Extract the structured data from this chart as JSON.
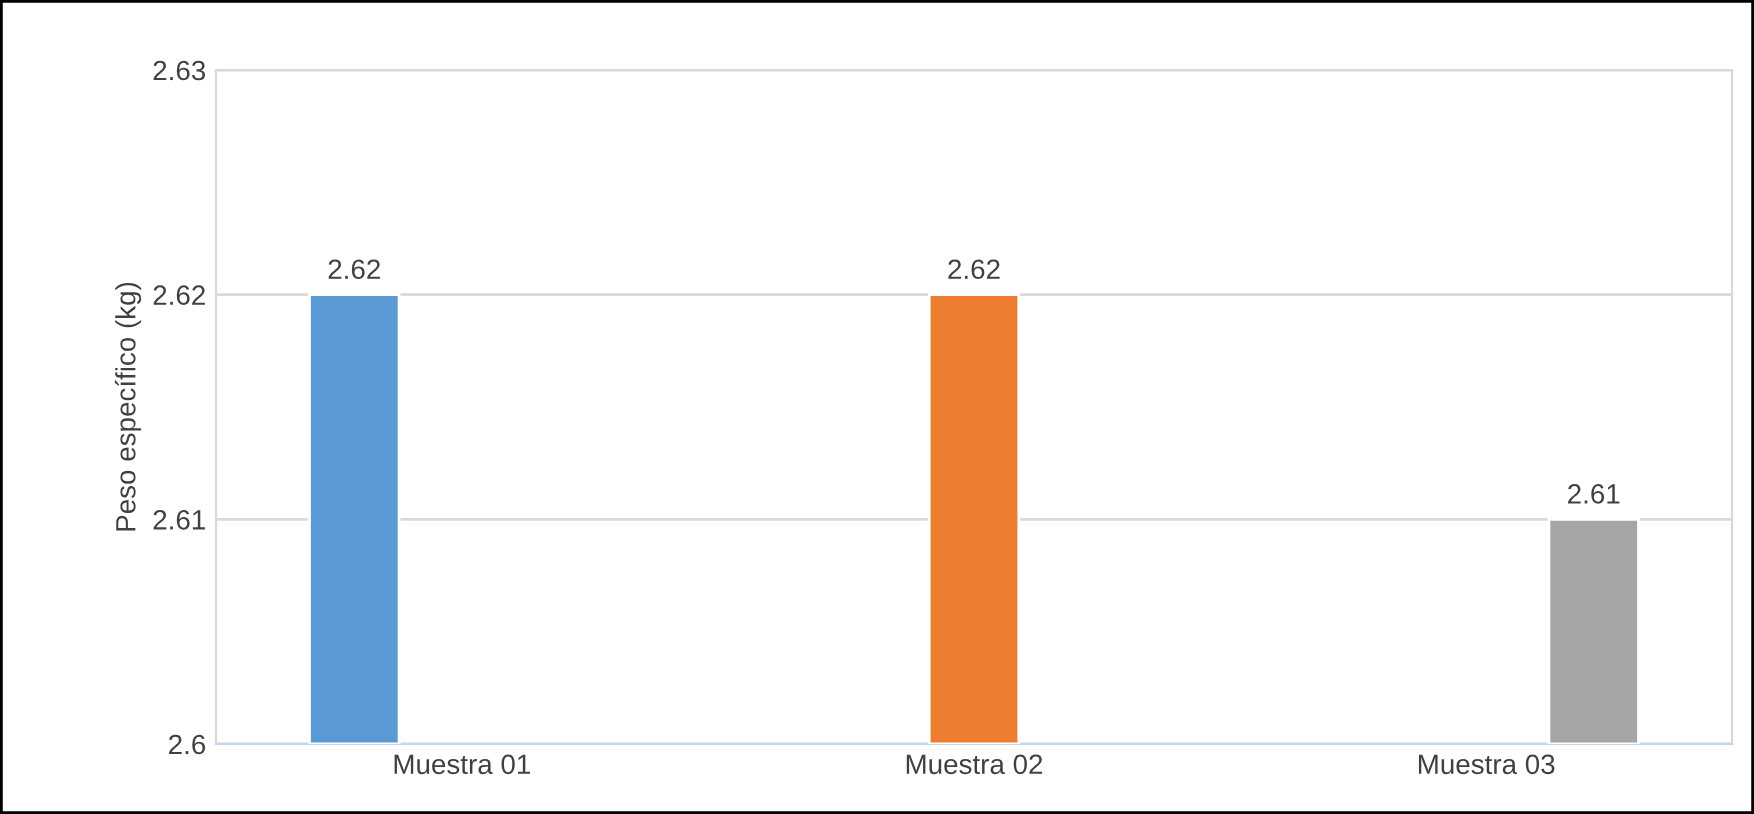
{
  "chart_data": {
    "type": "bar",
    "ylabel": "Peso específico (kg)",
    "categories": [
      "Muestra 01",
      "Muestra 02",
      "Muestra 03"
    ],
    "series": [
      {
        "color": "#5b9bd5",
        "values": [
          2.62,
          null,
          null
        ]
      },
      {
        "color": "#ed7d31",
        "values": [
          null,
          2.62,
          null
        ]
      },
      {
        "color": "#a5a5a5",
        "values": [
          null,
          null,
          2.61
        ]
      }
    ],
    "ylim": [
      2.6,
      2.63
    ],
    "yticks": [
      2.6,
      2.61,
      2.62,
      2.63
    ],
    "grid": "y",
    "data_labels": true
  }
}
